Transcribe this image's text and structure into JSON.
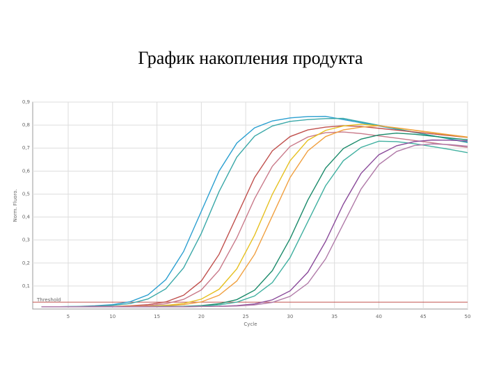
{
  "chart_data": {
    "type": "line",
    "title": "График накопления продукта",
    "x_label": "Cycle",
    "y_label": "Norm. Fluoro.",
    "threshold": {
      "label": "Threshold",
      "value": 0.03,
      "color": "#c0504d"
    },
    "xlim": [
      1,
      50
    ],
    "xticks": [
      5,
      10,
      15,
      20,
      25,
      30,
      35,
      40,
      45,
      50
    ],
    "ylim": [
      0,
      0.9
    ],
    "yticks": [
      {
        "value": 0.1,
        "label": "0,1"
      },
      {
        "value": 0.2,
        "label": "0,2"
      },
      {
        "value": 0.3,
        "label": "0,3"
      },
      {
        "value": 0.4,
        "label": "0,4"
      },
      {
        "value": 0.5,
        "label": "0,5"
      },
      {
        "value": 0.6,
        "label": "0,6"
      },
      {
        "value": 0.7,
        "label": "0,7"
      },
      {
        "value": 0.8,
        "label": "0,8"
      },
      {
        "value": 0.9,
        "label": "0,9"
      }
    ],
    "grid": true,
    "x": [
      2,
      4,
      6,
      8,
      10,
      12,
      14,
      16,
      18,
      20,
      22,
      24,
      26,
      28,
      30,
      32,
      34,
      36,
      38,
      40,
      42,
      44,
      46,
      48,
      50
    ],
    "series": [
      {
        "color": "#2a9fd0",
        "values": [
          0.01,
          0.01,
          0.011,
          0.014,
          0.019,
          0.032,
          0.062,
          0.128,
          0.25,
          0.425,
          0.6,
          0.722,
          0.788,
          0.818,
          0.831,
          0.837,
          0.838,
          0.824,
          0.81,
          0.796,
          0.782,
          0.768,
          0.754,
          0.74,
          0.726
        ]
      },
      {
        "color": "#3aa8a8",
        "values": [
          0.01,
          0.01,
          0.011,
          0.012,
          0.016,
          0.024,
          0.044,
          0.088,
          0.179,
          0.329,
          0.511,
          0.661,
          0.752,
          0.796,
          0.816,
          0.824,
          0.828,
          0.829,
          0.814,
          0.799,
          0.784,
          0.769,
          0.754,
          0.739,
          0.724
        ]
      },
      {
        "color": "#c0504d",
        "values": [
          0.01,
          0.01,
          0.01,
          0.011,
          0.011,
          0.014,
          0.019,
          0.031,
          0.06,
          0.122,
          0.238,
          0.405,
          0.572,
          0.688,
          0.75,
          0.779,
          0.791,
          0.797,
          0.794,
          0.786,
          0.778,
          0.77,
          0.762,
          0.754,
          0.746
        ]
      },
      {
        "color": "#c97a8a",
        "values": [
          0.01,
          0.01,
          0.01,
          0.01,
          0.011,
          0.012,
          0.015,
          0.023,
          0.042,
          0.083,
          0.169,
          0.31,
          0.48,
          0.621,
          0.707,
          0.748,
          0.767,
          0.77,
          0.763,
          0.753,
          0.743,
          0.733,
          0.723,
          0.713,
          0.703
        ]
      },
      {
        "color": "#e6c020",
        "values": [
          0.01,
          0.01,
          0.01,
          0.01,
          0.01,
          0.011,
          0.012,
          0.016,
          0.024,
          0.043,
          0.086,
          0.175,
          0.321,
          0.499,
          0.645,
          0.734,
          0.777,
          0.796,
          0.804,
          0.797,
          0.787,
          0.777,
          0.767,
          0.757,
          0.747
        ]
      },
      {
        "color": "#f0a040",
        "values": [
          0.01,
          0.01,
          0.01,
          0.01,
          0.01,
          0.011,
          0.011,
          0.014,
          0.019,
          0.031,
          0.06,
          0.122,
          0.238,
          0.405,
          0.572,
          0.688,
          0.75,
          0.779,
          0.791,
          0.797,
          0.788,
          0.778,
          0.768,
          0.758,
          0.748
        ]
      },
      {
        "color": "#1a8a6a",
        "values": [
          0.01,
          0.01,
          0.01,
          0.01,
          0.01,
          0.01,
          0.01,
          0.011,
          0.012,
          0.015,
          0.023,
          0.041,
          0.082,
          0.167,
          0.306,
          0.474,
          0.613,
          0.698,
          0.739,
          0.757,
          0.765,
          0.76,
          0.752,
          0.744,
          0.736
        ]
      },
      {
        "color": "#40b0a0",
        "values": [
          0.01,
          0.01,
          0.01,
          0.01,
          0.01,
          0.01,
          0.01,
          0.011,
          0.011,
          0.013,
          0.018,
          0.03,
          0.057,
          0.115,
          0.224,
          0.38,
          0.536,
          0.645,
          0.703,
          0.73,
          0.728,
          0.719,
          0.707,
          0.694,
          0.68
        ]
      },
      {
        "color": "#8a4a9a",
        "values": [
          0.01,
          0.01,
          0.01,
          0.01,
          0.01,
          0.01,
          0.01,
          0.01,
          0.01,
          0.011,
          0.012,
          0.015,
          0.022,
          0.04,
          0.079,
          0.16,
          0.294,
          0.456,
          0.59,
          0.671,
          0.71,
          0.728,
          0.735,
          0.734,
          0.731
        ]
      },
      {
        "color": "#b07aa8",
        "values": [
          0.01,
          0.01,
          0.01,
          0.01,
          0.01,
          0.01,
          0.01,
          0.01,
          0.01,
          0.011,
          0.011,
          0.013,
          0.018,
          0.029,
          0.055,
          0.112,
          0.218,
          0.37,
          0.522,
          0.628,
          0.685,
          0.711,
          0.718,
          0.715,
          0.708
        ]
      }
    ]
  }
}
